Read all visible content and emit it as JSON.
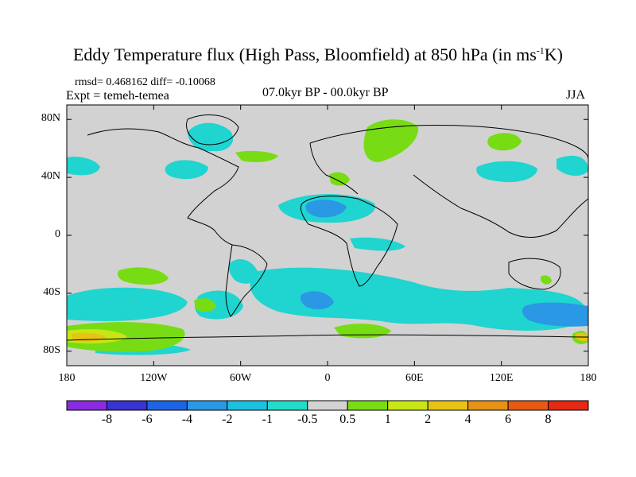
{
  "title": {
    "main": "Eddy Temperature flux (High Pass, Bloomfield) at 850 hPa (in ms",
    "sup": "-1",
    "unit_tail": "K)"
  },
  "stats": "rmsd= 0.468162 diff= -0.10068",
  "experiment": "Expt = temeh-temea",
  "period": "07.0kyr BP - 00.0kyr BP",
  "season": "JJA",
  "axes": {
    "y_labels": [
      "80N",
      "40N",
      "0",
      "40S",
      "80S"
    ],
    "y_values": [
      80,
      40,
      0,
      -40,
      -80
    ],
    "x_labels": [
      "180",
      "120W",
      "60W",
      "0",
      "60E",
      "120E",
      "180"
    ],
    "x_values": [
      -180,
      -120,
      -60,
      0,
      60,
      120,
      180
    ],
    "lat_range": [
      -90,
      90
    ],
    "lon_range": [
      -180,
      180
    ]
  },
  "colorbar": {
    "labels": [
      "-8",
      "-6",
      "-4",
      "-2",
      "-1",
      "-0.5",
      "0.5",
      "1",
      "2",
      "4",
      "6",
      "8"
    ],
    "colors": [
      "#8a2be2",
      "#3a32d4",
      "#1e64e6",
      "#2a98e4",
      "#1cc0e0",
      "#20dcc8",
      "#d2d2d2",
      "#78dc14",
      "#c8e614",
      "#e6c314",
      "#e69214",
      "#e65a14",
      "#e62814"
    ]
  },
  "map_colors": {
    "ocean_background": "#d2d2d2",
    "coastline": "#000000"
  }
}
